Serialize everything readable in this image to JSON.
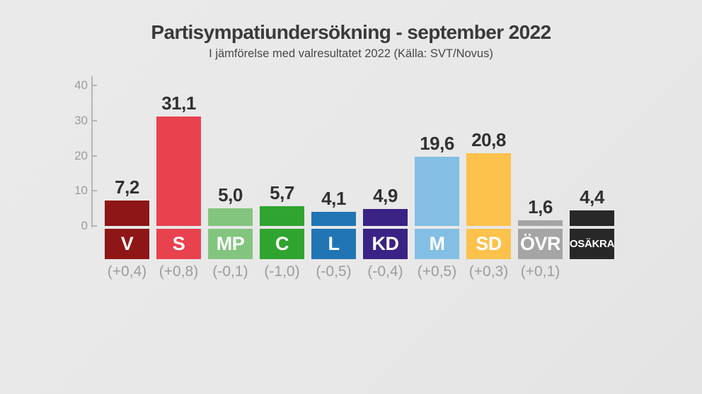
{
  "header": {
    "title": "Partisympatiundersökning - september 2022",
    "subtitle": "I jämförelse med valresultatet 2022 (Källa: SVT/Novus)"
  },
  "chart_data": {
    "type": "bar",
    "title": "Partisympatiundersökning - september 2022",
    "subtitle": "I jämförelse med valresultatet 2022 (Källa: SVT/Novus)",
    "categories": [
      "V",
      "S",
      "MP",
      "C",
      "L",
      "KD",
      "M",
      "SD",
      "ÖVR",
      "OSÄKRA"
    ],
    "values": [
      7.2,
      31.1,
      5.0,
      5.7,
      4.1,
      4.9,
      19.6,
      20.8,
      1.6,
      4.4
    ],
    "value_labels": [
      "7,2",
      "31,1",
      "5,0",
      "5,7",
      "4,1",
      "4,9",
      "19,6",
      "20,8",
      "1,6",
      "4,4"
    ],
    "change_labels": [
      "(+0,4)",
      "(+0,8)",
      "(-0,1)",
      "(-1,0)",
      "(-0,5)",
      "(-0,4)",
      "(+0,5)",
      "(+0,3)",
      "(+0,1)",
      ""
    ],
    "bar_colors": [
      "#8e1616",
      "#e8424f",
      "#83c57f",
      "#30a430",
      "#2175b5",
      "#392384",
      "#83bfe4",
      "#fcc24c",
      "#a5a5a5",
      "#282828"
    ],
    "y_ticks": [
      0,
      10,
      20,
      30,
      40
    ],
    "ylim": [
      0,
      40
    ],
    "xlabel": "",
    "ylabel": "",
    "grid": false,
    "legend": false
  },
  "colors": {
    "background": "#e8e8e8",
    "title_text": "#3a3a3a",
    "subtitle_text": "#474747",
    "value_text": "#313131",
    "change_text": "#9c9c9c",
    "axis_line": "#b5b5b5",
    "tick_text": "#9b9b9b",
    "party_label_text": "#ffffff"
  }
}
